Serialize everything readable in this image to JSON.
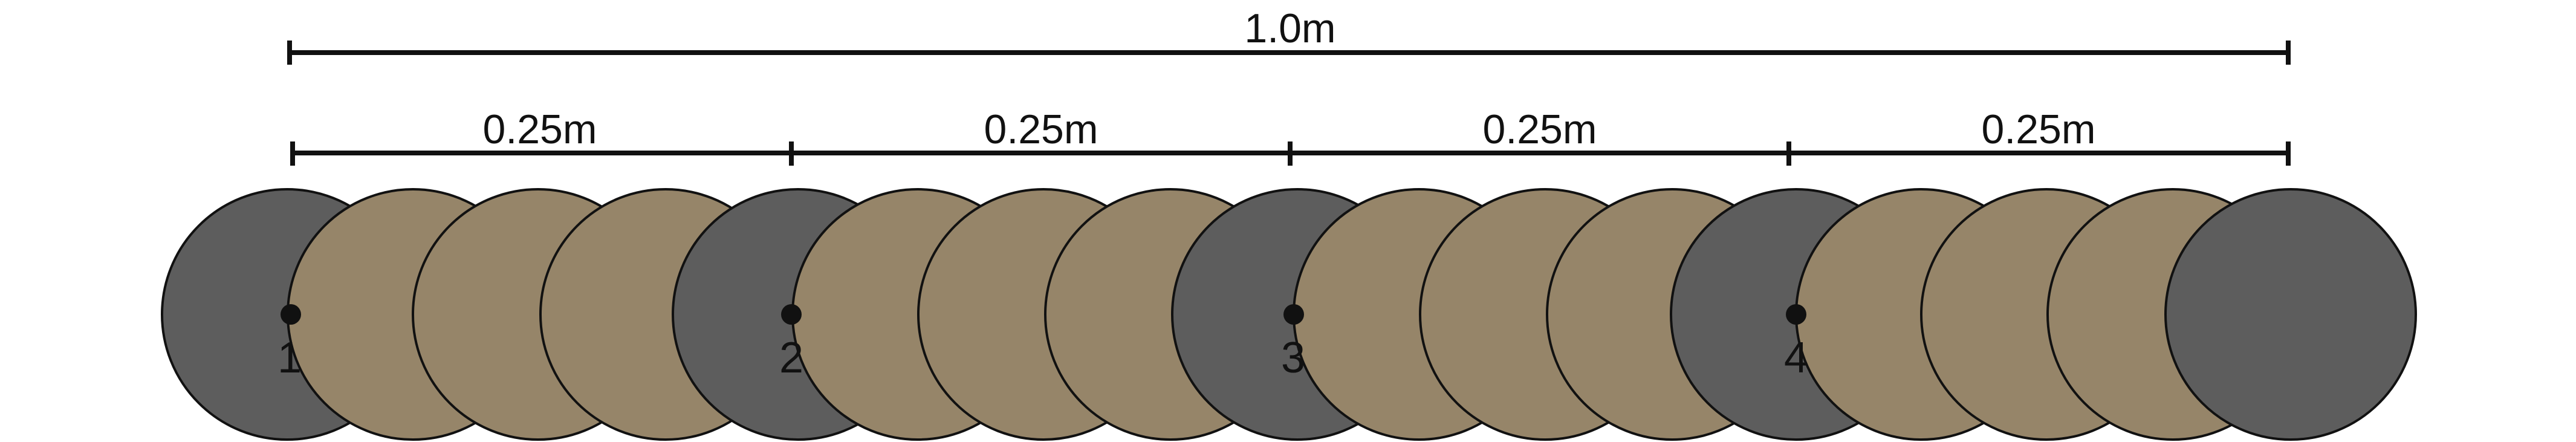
{
  "diagram": {
    "total_label": "1.0m",
    "segments": [
      {
        "label": "0.25m"
      },
      {
        "label": "0.25m"
      },
      {
        "label": "0.25m"
      },
      {
        "label": "0.25m"
      }
    ],
    "markers": [
      {
        "number": "1"
      },
      {
        "number": "2"
      },
      {
        "number": "3"
      },
      {
        "number": "4"
      }
    ],
    "colors": {
      "gray_disc": "#5d5d5d",
      "tan_disc": "#968569",
      "outline": "#111111",
      "background": "#ffffff"
    }
  }
}
